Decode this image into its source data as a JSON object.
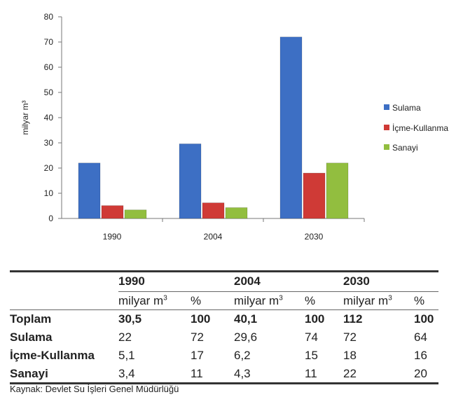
{
  "chart_data": {
    "type": "bar",
    "categories": [
      "1990",
      "2004",
      "2030"
    ],
    "series": [
      {
        "name": "Sulama",
        "values": [
          22,
          29.6,
          72
        ],
        "color": "#3d6fc4"
      },
      {
        "name": "İçme-Kullanma",
        "values": [
          5.1,
          6.2,
          18
        ],
        "color": "#cf3a36"
      },
      {
        "name": "Sanayi",
        "values": [
          3.4,
          4.3,
          22
        ],
        "color": "#92be3f"
      }
    ],
    "ylabel": "milyar m³",
    "ylim": [
      0,
      80
    ],
    "yticks": [
      0,
      10,
      20,
      30,
      40,
      50,
      60,
      70,
      80
    ],
    "legend": "right",
    "grid": false
  },
  "table": {
    "years": [
      "1990",
      "2004",
      "2030"
    ],
    "unit_label": "milyar m",
    "unit_sup": "3",
    "pct_label": "%",
    "rows": [
      {
        "label": "Toplam",
        "values": [
          "30,5",
          "100",
          "40,1",
          "100",
          "112",
          "100"
        ]
      },
      {
        "label": "Sulama",
        "values": [
          "22",
          "72",
          "29,6",
          "74",
          "72",
          "64"
        ]
      },
      {
        "label": "İçme-Kullanma",
        "values": [
          "5,1",
          "17",
          "6,2",
          "15",
          "18",
          "16"
        ]
      },
      {
        "label": "Sanayi",
        "values": [
          "3,4",
          "11",
          "4,3",
          "11",
          "22",
          "20"
        ]
      }
    ]
  },
  "source": "Kaynak: Devlet Su İşleri Genel Müdürlüğü"
}
